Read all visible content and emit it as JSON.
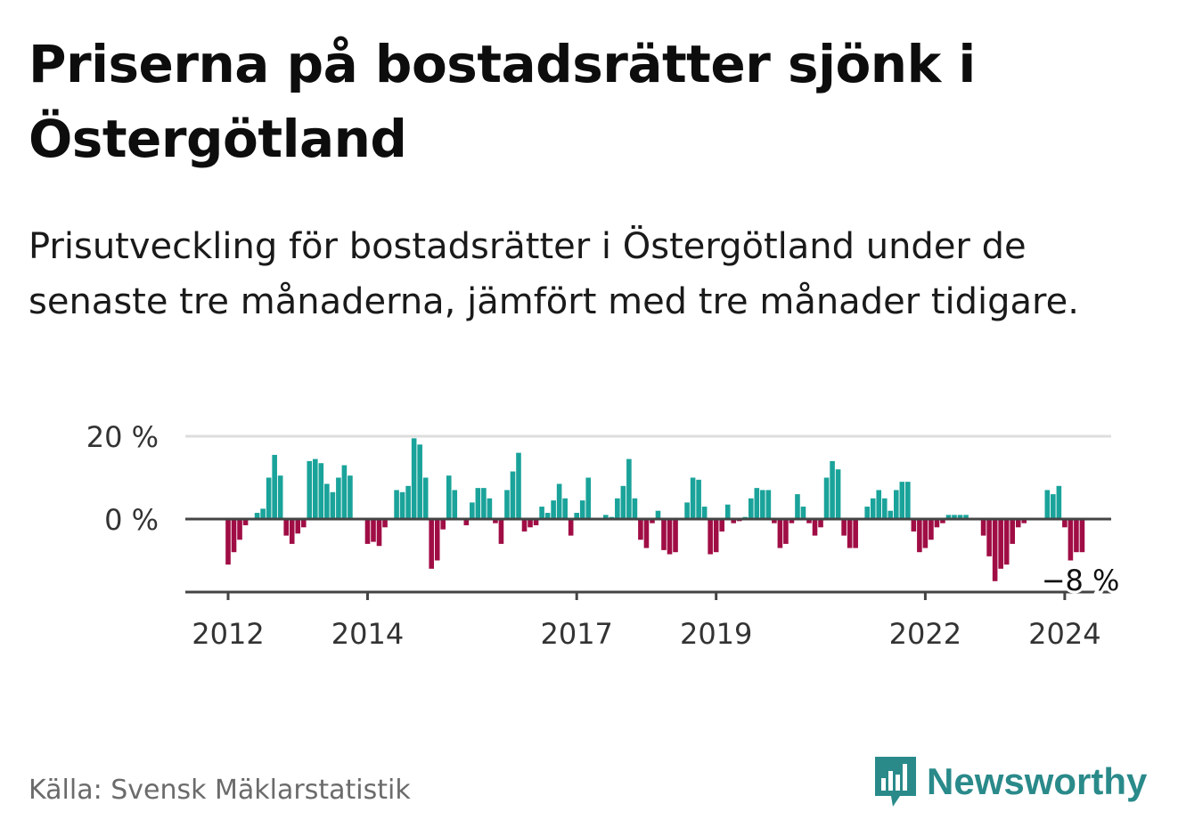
{
  "header": {
    "title": "Priserna på bostadsrätter sjönk i Östergötland",
    "subtitle": "Prisutveckling för bostadsrätter i Östergötland under de senaste tre månaderna, jämfört med tre månader tidigare."
  },
  "footer": {
    "source": "Källa: Svensk Mäklarstatistik",
    "brand": "Newsworthy"
  },
  "colors": {
    "positive": "#1aa39a",
    "negative": "#a00d45",
    "axis": "#444444",
    "grid": "#dddddd",
    "brand": "#2a8a8a"
  },
  "chart_data": {
    "type": "bar",
    "title": "Priserna på bostadsrätter sjönk i Östergötland",
    "xlabel": "",
    "ylabel": "",
    "x_start": "2012-01",
    "frequency": "monthly",
    "ylim": [
      -17,
      20
    ],
    "y_ticks": [
      {
        "value": 20,
        "label": "20 %"
      },
      {
        "value": 0,
        "label": "0 %"
      }
    ],
    "x_ticks": [
      {
        "index": 0,
        "label": "2012"
      },
      {
        "index": 24,
        "label": "2014"
      },
      {
        "index": 60,
        "label": "2017"
      },
      {
        "index": 84,
        "label": "2019"
      },
      {
        "index": 120,
        "label": "2022"
      },
      {
        "index": 144,
        "label": "2024"
      }
    ],
    "last_value_label": "−8 %",
    "values": [
      -11,
      -8,
      -5,
      -1.5,
      0,
      1.5,
      2.5,
      10,
      15.5,
      10.5,
      -4,
      -6,
      -3.5,
      -2,
      14,
      14.5,
      13.5,
      8.5,
      6.5,
      10,
      13,
      10.5,
      0,
      0,
      -6,
      -5.5,
      -6.5,
      -2,
      0,
      7,
      6.5,
      8,
      19.5,
      18,
      10,
      -12,
      -10,
      -2.5,
      10.5,
      7,
      0,
      -1.5,
      4,
      7.5,
      7.5,
      5,
      -1,
      -6,
      7,
      11.5,
      16,
      -3,
      -2,
      -1.5,
      3,
      1.5,
      4.5,
      8.5,
      5,
      -4,
      1.5,
      4.5,
      10,
      0,
      0,
      1,
      0.5,
      5,
      8,
      14.5,
      5,
      -5,
      -7,
      -1,
      2,
      -7.5,
      -8.5,
      -8,
      0,
      4,
      10,
      9.5,
      3,
      -8.5,
      -8,
      -3,
      3.5,
      -1,
      -0.5,
      0.5,
      5,
      7.5,
      7,
      7,
      -1,
      -7,
      -6,
      -1,
      6,
      3,
      -1,
      -4,
      -2,
      10,
      14,
      12,
      -4,
      -7,
      -7,
      0,
      3,
      5,
      7,
      5,
      2,
      7,
      9,
      9,
      -3,
      -8,
      -7,
      -5,
      -2,
      -1,
      1,
      1,
      1,
      1,
      0,
      0,
      -4,
      -9,
      -15,
      -12,
      -11,
      -6,
      -2,
      -1,
      0,
      0,
      0,
      7,
      6,
      8,
      -2,
      -10,
      -8,
      -8
    ]
  }
}
